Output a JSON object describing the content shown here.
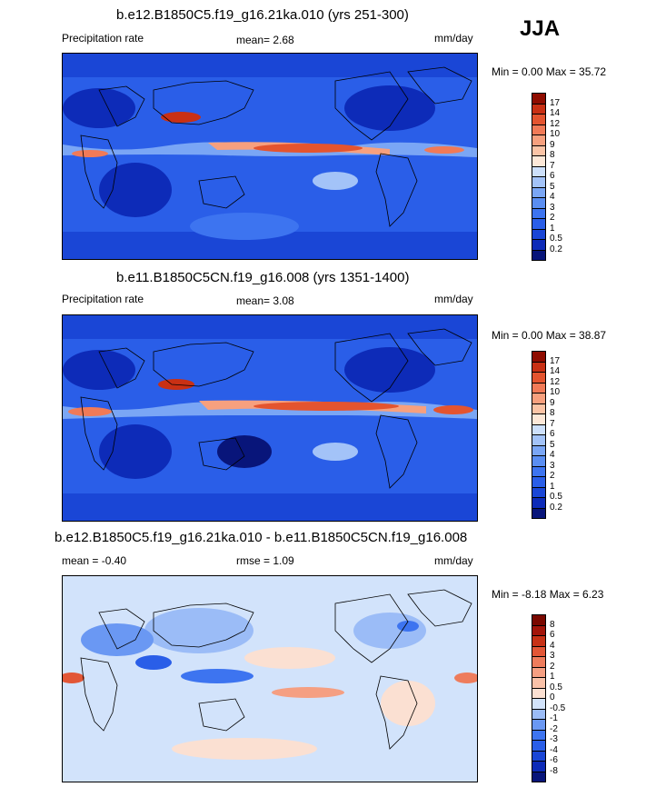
{
  "season": "JJA",
  "panels": [
    {
      "title": "b.e12.B1850C5.f19_g16.21ka.010 (yrs 251-300)",
      "left_label": "Precipitation rate",
      "mean_text": "mean=  2.68",
      "rmse_text": "",
      "units": "mm/day",
      "minmax": "Min =   0.00 Max =  35.72",
      "colorbar": {
        "levels": [
          "0.2",
          "0.5",
          "1",
          "2",
          "3",
          "4",
          "5",
          "6",
          "7",
          "8",
          "9",
          "10",
          "12",
          "14",
          "17"
        ],
        "colors": [
          "#08157a",
          "#0d2bb8",
          "#1a46d6",
          "#2a5ee8",
          "#3d74f0",
          "#5a8ef2",
          "#7aa6f5",
          "#a3c3f8",
          "#cde0fb",
          "#fde8d8",
          "#fbc4a6",
          "#f7a07e",
          "#f17a57",
          "#e4542f",
          "#c93014",
          "#8f0c00"
        ]
      }
    },
    {
      "title": "b.e11.B1850C5CN.f19_g16.008 (yrs 1351-1400)",
      "left_label": "Precipitation rate",
      "mean_text": "mean=  3.08",
      "rmse_text": "",
      "units": "mm/day",
      "minmax": "Min =   0.00 Max =  38.87",
      "colorbar": {
        "levels": [
          "0.2",
          "0.5",
          "1",
          "2",
          "3",
          "4",
          "5",
          "6",
          "7",
          "8",
          "9",
          "10",
          "12",
          "14",
          "17"
        ],
        "colors": [
          "#08157a",
          "#0d2bb8",
          "#1a46d6",
          "#2a5ee8",
          "#3d74f0",
          "#5a8ef2",
          "#7aa6f5",
          "#a3c3f8",
          "#cde0fb",
          "#fde8d8",
          "#fbc4a6",
          "#f7a07e",
          "#f17a57",
          "#e4542f",
          "#c93014",
          "#8f0c00"
        ]
      }
    },
    {
      "title": "b.e12.B1850C5.f19_g16.21ka.010 - b.e11.B1850C5CN.f19_g16.008",
      "left_label": "mean =  -0.40",
      "mean_text": "",
      "rmse_text": "rmse =  1.09",
      "units": "mm/day",
      "minmax": "Min =  -8.18 Max =   6.23",
      "colorbar": {
        "levels": [
          "-8",
          "-6",
          "-4",
          "-3",
          "-2",
          "-1",
          "-0.5",
          "0",
          "0.5",
          "1",
          "2",
          "3",
          "4",
          "6",
          "8"
        ],
        "colors": [
          "#08157a",
          "#0d2bb8",
          "#1a46d6",
          "#2a5ee8",
          "#3d74f0",
          "#6a98f3",
          "#9bbcf7",
          "#d2e3fb",
          "#fbe0d2",
          "#f9c1a8",
          "#f59f82",
          "#ee7c5c",
          "#e25636",
          "#c73116",
          "#a3150a",
          "#7a0800"
        ]
      }
    }
  ]
}
